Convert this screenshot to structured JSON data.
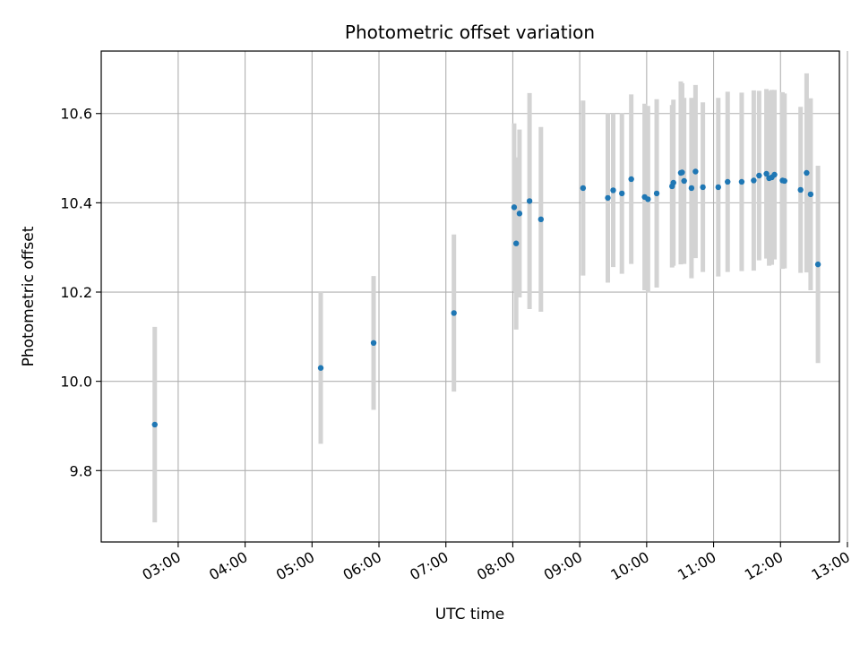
{
  "chart_data": {
    "type": "scatter",
    "title": "Photometric offset variation",
    "xlabel": "UTC time",
    "ylabel": "Photometric offset",
    "x_unit": "hour (UTC, decimal)",
    "xlim": [
      1.85,
      12.88
    ],
    "ylim": [
      9.64,
      10.74
    ],
    "grid": true,
    "x_ticks": [
      {
        "value": 3,
        "label": "03:00"
      },
      {
        "value": 4,
        "label": "04:00"
      },
      {
        "value": 5,
        "label": "05:00"
      },
      {
        "value": 6,
        "label": "06:00"
      },
      {
        "value": 7,
        "label": "07:00"
      },
      {
        "value": 8,
        "label": "08:00"
      },
      {
        "value": 9,
        "label": "09:00"
      },
      {
        "value": 10,
        "label": "10:00"
      },
      {
        "value": 11,
        "label": "11:00"
      },
      {
        "value": 12,
        "label": "12:00"
      },
      {
        "value": 13,
        "label": "13:00"
      }
    ],
    "y_ticks": [
      {
        "value": 9.8,
        "label": "9.8"
      },
      {
        "value": 10.0,
        "label": "10.0"
      },
      {
        "value": 10.2,
        "label": "10.2"
      },
      {
        "value": 10.4,
        "label": "10.4"
      },
      {
        "value": 10.6,
        "label": "10.6"
      }
    ],
    "colors": {
      "marker": "#1f77b4",
      "errorbar": "#d3d3d3",
      "grid": "#b0b0b0"
    },
    "points": [
      {
        "x": 2.65,
        "y": 9.903,
        "err": 0.219
      },
      {
        "x": 5.13,
        "y": 10.03,
        "err": 0.17
      },
      {
        "x": 5.92,
        "y": 10.086,
        "err": 0.15
      },
      {
        "x": 7.12,
        "y": 10.153,
        "err": 0.176
      },
      {
        "x": 8.02,
        "y": 10.39,
        "err": 0.188
      },
      {
        "x": 8.05,
        "y": 10.309,
        "err": 0.193
      },
      {
        "x": 8.1,
        "y": 10.376,
        "err": 0.188
      },
      {
        "x": 8.25,
        "y": 10.404,
        "err": 0.242
      },
      {
        "x": 8.42,
        "y": 10.363,
        "err": 0.207
      },
      {
        "x": 9.05,
        "y": 10.433,
        "err": 0.196
      },
      {
        "x": 9.42,
        "y": 10.411,
        "err": 0.19
      },
      {
        "x": 9.5,
        "y": 10.428,
        "err": 0.172
      },
      {
        "x": 9.63,
        "y": 10.421,
        "err": 0.18
      },
      {
        "x": 9.77,
        "y": 10.453,
        "err": 0.19
      },
      {
        "x": 9.97,
        "y": 10.413,
        "err": 0.209
      },
      {
        "x": 10.02,
        "y": 10.408,
        "err": 0.209
      },
      {
        "x": 10.15,
        "y": 10.421,
        "err": 0.211
      },
      {
        "x": 10.38,
        "y": 10.437,
        "err": 0.182
      },
      {
        "x": 10.4,
        "y": 10.445,
        "err": 0.186
      },
      {
        "x": 10.51,
        "y": 10.467,
        "err": 0.205
      },
      {
        "x": 10.53,
        "y": 10.468,
        "err": 0.2
      },
      {
        "x": 10.56,
        "y": 10.449,
        "err": 0.186
      },
      {
        "x": 10.67,
        "y": 10.433,
        "err": 0.202
      },
      {
        "x": 10.73,
        "y": 10.47,
        "err": 0.194
      },
      {
        "x": 10.84,
        "y": 10.435,
        "err": 0.19
      },
      {
        "x": 11.07,
        "y": 10.435,
        "err": 0.2
      },
      {
        "x": 11.21,
        "y": 10.447,
        "err": 0.202
      },
      {
        "x": 11.42,
        "y": 10.447,
        "err": 0.2
      },
      {
        "x": 11.6,
        "y": 10.45,
        "err": 0.202
      },
      {
        "x": 11.68,
        "y": 10.461,
        "err": 0.19
      },
      {
        "x": 11.79,
        "y": 10.465,
        "err": 0.19
      },
      {
        "x": 11.83,
        "y": 10.455,
        "err": 0.196
      },
      {
        "x": 11.87,
        "y": 10.457,
        "err": 0.196
      },
      {
        "x": 11.91,
        "y": 10.463,
        "err": 0.19
      },
      {
        "x": 12.03,
        "y": 10.45,
        "err": 0.198
      },
      {
        "x": 12.06,
        "y": 10.449,
        "err": 0.196
      },
      {
        "x": 12.3,
        "y": 10.429,
        "err": 0.186
      },
      {
        "x": 12.39,
        "y": 10.467,
        "err": 0.223
      },
      {
        "x": 12.45,
        "y": 10.419,
        "err": 0.215
      },
      {
        "x": 12.56,
        "y": 10.262,
        "err": 0.221
      }
    ]
  }
}
